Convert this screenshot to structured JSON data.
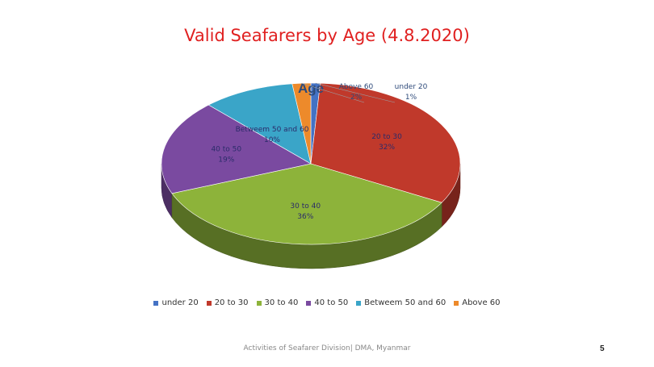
{
  "slide": {
    "title": "Valid Seafarers by Age (4.8.2020)",
    "footer": "Activities of Seafarer Division| DMA, Myanmar",
    "page_number": "5"
  },
  "chart_data": {
    "type": "pie",
    "title": "Age",
    "categories": [
      "under 20",
      "20 to 30",
      "30 to 40",
      "40 to 50",
      "Betweem 50 and 60",
      "Above 60"
    ],
    "values": [
      1,
      32,
      36,
      19,
      10,
      2
    ],
    "labels": [
      "1%",
      "32%",
      "36%",
      "19%",
      "10%",
      "2%"
    ],
    "colors": [
      "#4472c4",
      "#c0392b",
      "#8db33a",
      "#7a4aa0",
      "#3aa5c8",
      "#ed8a2b"
    ],
    "legend_position": "bottom",
    "three_d": true
  }
}
